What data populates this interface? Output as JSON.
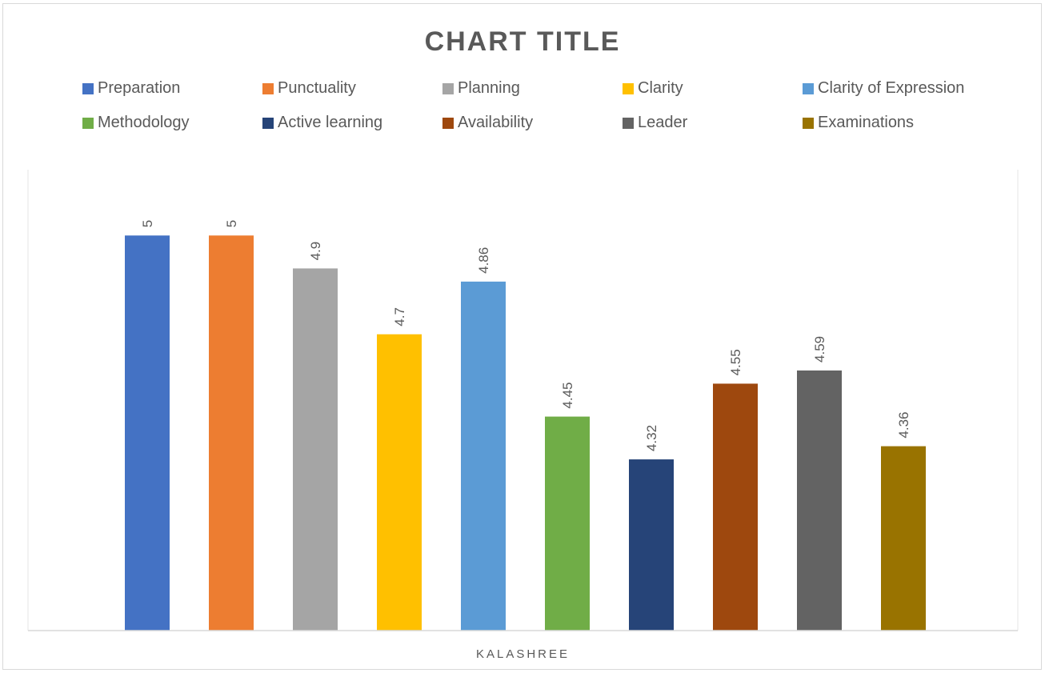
{
  "chart_data": {
    "type": "bar",
    "title": "CHART TITLE",
    "categories": [
      "KALASHREE"
    ],
    "series": [
      {
        "name": "Preparation",
        "values": [
          5
        ],
        "color": "#4472C4"
      },
      {
        "name": "Punctuality",
        "values": [
          5
        ],
        "color": "#ED7D31"
      },
      {
        "name": "Planning",
        "values": [
          4.9
        ],
        "color": "#A5A5A5"
      },
      {
        "name": "Clarity",
        "values": [
          4.7
        ],
        "color": "#FFC000"
      },
      {
        "name": "Clarity of Expression",
        "values": [
          4.86
        ],
        "color": "#5B9BD5"
      },
      {
        "name": "Methodology",
        "values": [
          4.45
        ],
        "color": "#70AD47"
      },
      {
        "name": "Active learning",
        "values": [
          4.32
        ],
        "color": "#264478"
      },
      {
        "name": "Availability",
        "values": [
          4.55
        ],
        "color": "#9E480E"
      },
      {
        "name": "Leader",
        "values": [
          4.59
        ],
        "color": "#636363"
      },
      {
        "name": "Examinations",
        "values": [
          4.36
        ],
        "color": "#997300"
      }
    ],
    "ylim": [
      3.8,
      5.2
    ],
    "grid": false,
    "legend_position": "top",
    "data_labels": true
  }
}
